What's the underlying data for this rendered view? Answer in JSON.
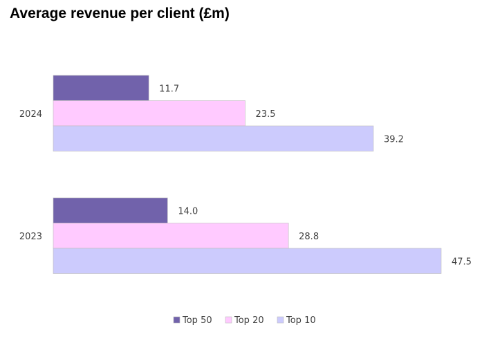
{
  "chart_data": {
    "type": "bar",
    "orientation": "horizontal",
    "title": "Average revenue per client (£m)",
    "categories": [
      "2024",
      "2023"
    ],
    "series": [
      {
        "name": "Top 50",
        "values": [
          11.7,
          14.0
        ],
        "labels": [
          "11.7",
          "14.0"
        ],
        "color": "#7162ab"
      },
      {
        "name": "Top 20",
        "values": [
          23.5,
          28.8
        ],
        "labels": [
          "23.5",
          "28.8"
        ],
        "color": "#ffcaff"
      },
      {
        "name": "Top 10",
        "values": [
          39.2,
          47.5
        ],
        "labels": [
          "39.2",
          "47.5"
        ],
        "color": "#cccbfd"
      }
    ],
    "xlim": [
      0,
      47.5
    ],
    "grid": false,
    "legend_position": "bottom"
  }
}
